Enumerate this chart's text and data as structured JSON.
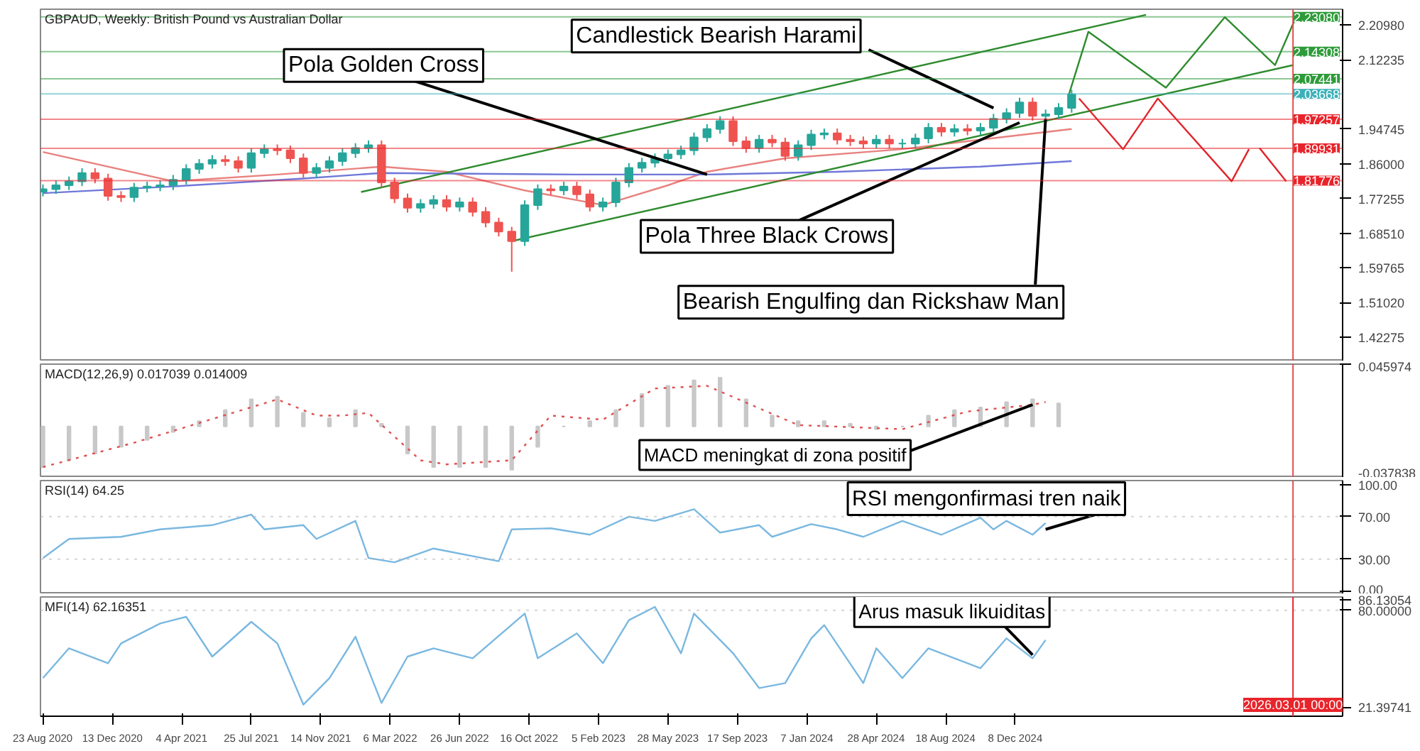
{
  "chart_data": [
    {
      "type": "candlestick",
      "title": "GBPAUD, Weekly:  British Pound vs Australian Dollar",
      "grid": false,
      "tick_labels": "y",
      "xlim": [
        "2020-08-19",
        "2026-05-20"
      ],
      "ylim": [
        1.362,
        2.25
      ],
      "yticks": [
        {
          "value": 2.2098,
          "label": "2.20980"
        },
        {
          "value": 2.12235,
          "label": "2.12235"
        },
        {
          "value": 1.94745,
          "label": "1.94745"
        },
        {
          "value": 1.86,
          "label": "1.86000"
        },
        {
          "value": 1.77255,
          "label": "1.77255"
        },
        {
          "value": 1.6851,
          "label": "1.68510"
        },
        {
          "value": 1.59765,
          "label": "1.59765"
        },
        {
          "value": 1.5102,
          "label": "1.51020"
        },
        {
          "value": 1.42275,
          "label": "1.42275"
        }
      ],
      "x": [
        "2020-08-23",
        "2020-09-13",
        "2020-10-04",
        "2020-10-25",
        "2020-11-15",
        "2020-12-06",
        "2020-12-27",
        "2021-01-17",
        "2021-02-07",
        "2021-02-28",
        "2021-03-21",
        "2021-04-11",
        "2021-05-02",
        "2021-05-23",
        "2021-06-13",
        "2021-07-04",
        "2021-07-25",
        "2021-08-15",
        "2021-09-05",
        "2021-09-26",
        "2021-10-17",
        "2021-11-07",
        "2021-11-28",
        "2021-12-19",
        "2022-01-09",
        "2022-01-30",
        "2022-02-20",
        "2022-03-13",
        "2022-04-03",
        "2022-04-24",
        "2022-05-15",
        "2022-06-05",
        "2022-06-26",
        "2022-07-17",
        "2022-08-07",
        "2022-08-28",
        "2022-09-18",
        "2022-10-09",
        "2022-10-30",
        "2022-11-20",
        "2022-12-11",
        "2023-01-01",
        "2023-01-22",
        "2023-02-12",
        "2023-03-05",
        "2023-03-26",
        "2023-04-16",
        "2023-05-07",
        "2023-05-28",
        "2023-06-18",
        "2023-07-09",
        "2023-07-30",
        "2023-08-20",
        "2023-09-10",
        "2023-10-01",
        "2023-10-22",
        "2023-11-12",
        "2023-12-03",
        "2023-12-24",
        "2024-01-14",
        "2024-02-04",
        "2024-02-25",
        "2024-03-17",
        "2024-04-07",
        "2024-04-28",
        "2024-05-19",
        "2024-06-09",
        "2024-06-30",
        "2024-07-21",
        "2024-08-11",
        "2024-09-01",
        "2024-09-22",
        "2024-10-13",
        "2024-11-03",
        "2024-11-24",
        "2024-12-15",
        "2025-01-05",
        "2025-01-26",
        "2025-02-16",
        "2025-03-09"
      ],
      "ohlc": [
        [
          1.79,
          1.808,
          1.778,
          1.796
        ],
        [
          1.796,
          1.818,
          1.784,
          1.806
        ],
        [
          1.806,
          1.828,
          1.794,
          1.816
        ],
        [
          1.816,
          1.849,
          1.804,
          1.837
        ],
        [
          1.837,
          1.849,
          1.811,
          1.823
        ],
        [
          1.823,
          1.835,
          1.767,
          1.779
        ],
        [
          1.779,
          1.791,
          1.764,
          1.776
        ],
        [
          1.776,
          1.812,
          1.764,
          1.8
        ],
        [
          1.8,
          1.815,
          1.788,
          1.803
        ],
        [
          1.803,
          1.818,
          1.791,
          1.806
        ],
        [
          1.806,
          1.832,
          1.794,
          1.82
        ],
        [
          1.82,
          1.859,
          1.808,
          1.847
        ],
        [
          1.847,
          1.872,
          1.835,
          1.86
        ],
        [
          1.86,
          1.882,
          1.848,
          1.87
        ],
        [
          1.87,
          1.882,
          1.855,
          1.867
        ],
        [
          1.867,
          1.879,
          1.838,
          1.85
        ],
        [
          1.85,
          1.899,
          1.838,
          1.887
        ],
        [
          1.887,
          1.909,
          1.875,
          1.897
        ],
        [
          1.897,
          1.909,
          1.882,
          1.894
        ],
        [
          1.894,
          1.906,
          1.862,
          1.874
        ],
        [
          1.874,
          1.886,
          1.825,
          1.837
        ],
        [
          1.837,
          1.862,
          1.825,
          1.85
        ],
        [
          1.85,
          1.879,
          1.838,
          1.867
        ],
        [
          1.867,
          1.899,
          1.855,
          1.887
        ],
        [
          1.887,
          1.912,
          1.875,
          1.9
        ],
        [
          1.9,
          1.919,
          1.888,
          1.907
        ],
        [
          1.907,
          1.919,
          1.801,
          1.813
        ],
        [
          1.813,
          1.825,
          1.761,
          1.773
        ],
        [
          1.773,
          1.785,
          1.737,
          1.749
        ],
        [
          1.749,
          1.771,
          1.737,
          1.759
        ],
        [
          1.759,
          1.781,
          1.747,
          1.769
        ],
        [
          1.769,
          1.781,
          1.74,
          1.752
        ],
        [
          1.752,
          1.775,
          1.74,
          1.763
        ],
        [
          1.763,
          1.775,
          1.727,
          1.739
        ],
        [
          1.739,
          1.751,
          1.7,
          1.712
        ],
        [
          1.712,
          1.724,
          1.677,
          1.689
        ],
        [
          1.689,
          1.701,
          1.588,
          1.665
        ],
        [
          1.665,
          1.768,
          1.653,
          1.756
        ],
        [
          1.756,
          1.808,
          1.744,
          1.796
        ],
        [
          1.796,
          1.808,
          1.781,
          1.793
        ],
        [
          1.793,
          1.815,
          1.781,
          1.803
        ],
        [
          1.803,
          1.815,
          1.771,
          1.783
        ],
        [
          1.783,
          1.795,
          1.74,
          1.752
        ],
        [
          1.752,
          1.775,
          1.74,
          1.763
        ],
        [
          1.763,
          1.825,
          1.751,
          1.813
        ],
        [
          1.813,
          1.862,
          1.801,
          1.85
        ],
        [
          1.85,
          1.875,
          1.838,
          1.863
        ],
        [
          1.863,
          1.886,
          1.851,
          1.874
        ],
        [
          1.874,
          1.896,
          1.862,
          1.884
        ],
        [
          1.884,
          1.906,
          1.872,
          1.894
        ],
        [
          1.894,
          1.939,
          1.882,
          1.927
        ],
        [
          1.927,
          1.96,
          1.915,
          1.948
        ],
        [
          1.948,
          1.98,
          1.936,
          1.968
        ],
        [
          1.968,
          1.98,
          1.905,
          1.917
        ],
        [
          1.917,
          1.929,
          1.888,
          1.9
        ],
        [
          1.9,
          1.933,
          1.888,
          1.921
        ],
        [
          1.921,
          1.933,
          1.902,
          1.914
        ],
        [
          1.914,
          1.926,
          1.868,
          1.88
        ],
        [
          1.88,
          1.919,
          1.868,
          1.907
        ],
        [
          1.907,
          1.946,
          1.895,
          1.934
        ],
        [
          1.934,
          1.949,
          1.922,
          1.937
        ],
        [
          1.937,
          1.949,
          1.909,
          1.921
        ],
        [
          1.921,
          1.933,
          1.905,
          1.917
        ],
        [
          1.917,
          1.929,
          1.899,
          1.911
        ],
        [
          1.911,
          1.933,
          1.899,
          1.921
        ],
        [
          1.921,
          1.933,
          1.899,
          1.911
        ],
        [
          1.911,
          1.923,
          1.899,
          1.911
        ],
        [
          1.911,
          1.936,
          1.899,
          1.924
        ],
        [
          1.924,
          1.963,
          1.912,
          1.951
        ],
        [
          1.951,
          1.963,
          1.929,
          1.941
        ],
        [
          1.941,
          1.96,
          1.929,
          1.948
        ],
        [
          1.948,
          1.96,
          1.932,
          1.944
        ],
        [
          1.944,
          1.963,
          1.932,
          1.951
        ],
        [
          1.951,
          1.986,
          1.939,
          1.974
        ],
        [
          1.974,
          2.0,
          1.962,
          1.988
        ],
        [
          1.988,
          2.027,
          1.976,
          2.015
        ],
        [
          2.015,
          2.027,
          1.969,
          1.981
        ],
        [
          1.981,
          1.997,
          1.969,
          1.985
        ],
        [
          1.985,
          2.013,
          1.973,
          2.001
        ],
        [
          2.001,
          2.047,
          1.989,
          2.035
        ]
      ],
      "series": [
        {
          "type": "line",
          "color": "#e8827f",
          "x": [
            "2020-08-23",
            "2021-03-21",
            "2021-09-05",
            "2022-02-20",
            "2022-06-05",
            "2022-10-09",
            "2023-02-12",
            "2023-05-28",
            "2023-07-30",
            "2023-12-03",
            "2024-06-09",
            "2024-10-13",
            "2025-03-09"
          ],
          "values": [
            1.89,
            1.816,
            1.833,
            1.853,
            1.84,
            1.793,
            1.756,
            1.806,
            1.84,
            1.874,
            1.897,
            1.921,
            1.948
          ]
        },
        {
          "type": "line",
          "color": "#6f78d8",
          "x": [
            "2020-08-23",
            "2021-03-21",
            "2021-10-17",
            "2022-02-20",
            "2023-01-01",
            "2023-07-30",
            "2024-02-25",
            "2024-10-13",
            "2025-03-09"
          ],
          "values": [
            1.786,
            1.803,
            1.823,
            1.837,
            1.833,
            1.833,
            1.84,
            1.853,
            1.867
          ]
        },
        {
          "type": "line",
          "color": "#2e8b2e",
          "x": [
            "2022-09-18",
            "2026-03-01"
          ],
          "values": [
            1.665,
            2.109
          ]
        },
        {
          "type": "line",
          "color": "#2e8b2e",
          "x": [
            "2022-01-18",
            "2025-07-07"
          ],
          "values": [
            1.789,
            2.236
          ]
        },
        {
          "type": "line",
          "color": "#2e8b2e",
          "x": [
            "2025-03-04",
            "2025-04-05",
            "2025-08-08",
            "2025-11-11",
            "2026-01-31",
            "2026-03-05"
          ],
          "values": [
            2.032,
            2.193,
            2.052,
            2.23,
            2.109,
            2.227
          ]
        },
        {
          "type": "line",
          "color": "#e0242b",
          "x": [
            "2025-03-21",
            "2025-05-31",
            "2025-07-26",
            "2025-11-22",
            "2025-12-20"
          ],
          "values": [
            2.025,
            1.897,
            2.025,
            1.816,
            1.897
          ]
        },
        {
          "type": "line",
          "color": "#e0242b",
          "x": [
            "2026-01-06",
            "2026-02-18"
          ],
          "values": [
            1.9,
            1.816
          ]
        }
      ],
      "ref_lines": [
        {
          "axis": "y",
          "value": 2.2308,
          "label": "2.23080",
          "color": "#2e9b3a"
        },
        {
          "axis": "y",
          "value": 2.14308,
          "label": "2.14308",
          "color": "#2e9b3a"
        },
        {
          "axis": "y",
          "value": 2.07441,
          "label": "2.07441",
          "color": "#2e9b3a"
        },
        {
          "axis": "y",
          "value": 2.03668,
          "label": "2.03668",
          "color": "#3cb0b8"
        },
        {
          "axis": "y",
          "value": 1.97257,
          "label": "1.97257",
          "color": "#e8242b"
        },
        {
          "axis": "y",
          "value": 1.89931,
          "label": "1.89931",
          "color": "#e8242b"
        },
        {
          "axis": "y",
          "value": 1.81776,
          "label": "1.81776",
          "color": "#e8242b"
        },
        {
          "axis": "x",
          "value": "2026-03-01",
          "color": "#e05050"
        }
      ],
      "annotations": [
        {
          "text": "Candlestick Bearish Harami",
          "x": "2024-11-03",
          "y": 2.001
        },
        {
          "text": "Pola Golden Cross",
          "x": "2023-07-30",
          "y": 1.833
        },
        {
          "text": "Pola Three Black Crows",
          "x": "2024-12-15",
          "y": 1.964
        },
        {
          "text": "Bearish Engulfing dan Rickshaw Man",
          "x": "2025-01-26",
          "y": 1.974
        }
      ]
    },
    {
      "type": "bar",
      "title": "MACD(12,26,9) 0.017039 0.014009",
      "grid": false,
      "tick_labels": "y",
      "xlim": [
        "2020-08-19",
        "2026-05-20"
      ],
      "ylim": [
        -0.037838,
        0.045974
      ],
      "yticks": [
        {
          "value": 0.045974,
          "label": "0.045974"
        },
        {
          "value": -0.037838,
          "label": "-0.037838"
        }
      ],
      "series": [
        {
          "type": "bar",
          "color": "#c8c8c8",
          "x": [
            "2020-08-23",
            "2020-10-04",
            "2020-11-15",
            "2020-12-27",
            "2021-02-07",
            "2021-03-21",
            "2021-05-02",
            "2021-06-13",
            "2021-07-25",
            "2021-09-05",
            "2021-10-17",
            "2021-11-28",
            "2022-01-09",
            "2022-02-20",
            "2022-04-03",
            "2022-05-15",
            "2022-06-26",
            "2022-08-07",
            "2022-09-18",
            "2022-10-30",
            "2022-12-11",
            "2023-01-22",
            "2023-03-05",
            "2023-04-16",
            "2023-05-28",
            "2023-07-09",
            "2023-08-20",
            "2023-10-01",
            "2023-11-12",
            "2023-12-24",
            "2024-02-04",
            "2024-03-17",
            "2024-04-28",
            "2024-06-09",
            "2024-07-21",
            "2024-09-01",
            "2024-10-13",
            "2024-11-24",
            "2025-01-05",
            "2025-02-16"
          ],
          "values": [
            -0.03,
            -0.025,
            -0.02,
            -0.015,
            -0.01,
            -0.004,
            0.004,
            0.012,
            0.02,
            0.022,
            0.01,
            0.006,
            0.012,
            0.002,
            -0.02,
            -0.03,
            -0.03,
            -0.03,
            -0.032,
            -0.015,
            0.0,
            0.004,
            0.012,
            0.024,
            0.03,
            0.034,
            0.036,
            0.02,
            0.008,
            0.004,
            0.004,
            0.002,
            -0.002,
            0.0,
            0.008,
            0.012,
            0.014,
            0.018,
            0.02,
            0.017
          ]
        },
        {
          "type": "line",
          "color": "#e05050",
          "line_style": "dotted",
          "x": [
            "2020-08-23",
            "2021-01-17",
            "2021-09-05",
            "2021-11-07",
            "2021-12-19",
            "2022-01-30",
            "2022-04-24",
            "2022-06-05",
            "2022-09-18",
            "2022-11-20",
            "2023-02-12",
            "2023-05-07",
            "2023-07-30",
            "2023-12-24",
            "2024-06-09",
            "2024-09-22",
            "2025-01-05",
            "2025-01-26"
          ],
          "values": [
            -0.03,
            -0.012,
            0.02,
            0.008,
            0.008,
            0.01,
            -0.025,
            -0.028,
            -0.025,
            0.008,
            0.005,
            0.028,
            0.03,
            0.001,
            -0.002,
            0.011,
            0.016,
            0.018
          ]
        }
      ],
      "ref_lines": [
        {
          "axis": "x",
          "value": "2026-03-01",
          "color": "#e05050"
        }
      ],
      "annotations": [
        {
          "text": "MACD meningkat di zona positif",
          "x": "2025-01-05",
          "y": 0.016
        }
      ]
    },
    {
      "type": "line",
      "title": "RSI(14) 64.25",
      "grid": false,
      "tick_labels": "y",
      "xlim": [
        "2020-08-19",
        "2026-05-20"
      ],
      "ylim": [
        -3,
        104
      ],
      "yticks": [
        {
          "value": 100,
          "label": "100.00"
        },
        {
          "value": 70,
          "label": "70.00"
        },
        {
          "value": 30,
          "label": "30.00"
        },
        {
          "value": 0,
          "label": "0.00"
        }
      ],
      "series": [
        {
          "color": "#7ab8e0",
          "x": [
            "2020-08-23",
            "2020-10-04",
            "2020-12-27",
            "2021-02-28",
            "2021-05-23",
            "2021-07-25",
            "2021-08-15",
            "2021-10-17",
            "2021-11-07",
            "2022-01-09",
            "2022-01-30",
            "2022-03-13",
            "2022-05-15",
            "2022-08-28",
            "2022-09-18",
            "2022-11-20",
            "2023-01-22",
            "2023-03-26",
            "2023-05-07",
            "2023-07-09",
            "2023-08-20",
            "2023-10-22",
            "2023-11-12",
            "2024-01-14",
            "2024-02-25",
            "2024-04-07",
            "2024-06-09",
            "2024-08-11",
            "2024-10-13",
            "2024-11-03",
            "2024-11-24",
            "2025-01-05",
            "2025-01-26"
          ],
          "values": [
            31,
            49,
            51,
            58,
            62,
            72,
            58,
            62,
            49,
            66,
            31,
            27,
            40,
            28,
            58,
            59,
            53,
            70,
            66,
            77,
            55,
            62,
            51,
            63,
            58,
            51,
            66,
            53,
            69,
            58,
            66,
            53,
            64
          ]
        }
      ],
      "ref_lines": [
        {
          "axis": "y",
          "value": 70,
          "color": "#b0b0b0",
          "line_style": "dotted"
        },
        {
          "axis": "y",
          "value": 30,
          "color": "#b0b0b0",
          "line_style": "dotted"
        },
        {
          "axis": "x",
          "value": "2026-03-01",
          "color": "#e05050"
        }
      ],
      "annotations": [
        {
          "text": "RSI mengonfirmasi tren naik",
          "x": "2025-01-26",
          "y": 58
        }
      ]
    },
    {
      "type": "line",
      "title": "MFI(14) 62.16351",
      "grid": false,
      "xlim": [
        "2020-08-19",
        "2026-05-20"
      ],
      "ylim": [
        16,
        88
      ],
      "xticks": [
        {
          "value": "2020-08-23",
          "label": "23 Aug 2020"
        },
        {
          "value": "2020-12-13",
          "label": "13 Dec 2020"
        },
        {
          "value": "2021-04-04",
          "label": "4 Apr 2021"
        },
        {
          "value": "2021-07-25",
          "label": "25 Jul 2021"
        },
        {
          "value": "2021-11-14",
          "label": "14 Nov 2021"
        },
        {
          "value": "2022-03-06",
          "label": "6 Mar 2022"
        },
        {
          "value": "2022-06-26",
          "label": "26 Jun 2022"
        },
        {
          "value": "2022-10-16",
          "label": "16 Oct 2022"
        },
        {
          "value": "2023-02-05",
          "label": "5 Feb 2023"
        },
        {
          "value": "2023-05-28",
          "label": "28 May 2023"
        },
        {
          "value": "2023-09-17",
          "label": "17 Sep 2023"
        },
        {
          "value": "2024-01-07",
          "label": "7 Jan 2024"
        },
        {
          "value": "2024-04-28",
          "label": "28 Apr 2024"
        },
        {
          "value": "2024-08-18",
          "label": "18 Aug 2024"
        },
        {
          "value": "2024-12-08",
          "label": "8 Dec 2024"
        }
      ],
      "yticks": [
        {
          "value": 86.13054,
          "label": "86.13054"
        },
        {
          "value": 80,
          "label": "80.00000"
        },
        {
          "value": 21.39741,
          "label": "21.39741"
        }
      ],
      "series": [
        {
          "color": "#7ab8e0",
          "x": [
            "2020-08-23",
            "2020-10-04",
            "2020-10-25",
            "2020-12-06",
            "2020-12-27",
            "2021-02-28",
            "2021-04-11",
            "2021-05-23",
            "2021-07-25",
            "2021-09-05",
            "2021-10-17",
            "2021-11-28",
            "2022-01-09",
            "2022-02-20",
            "2022-04-03",
            "2022-05-15",
            "2022-07-17",
            "2022-10-09",
            "2022-10-30",
            "2023-01-01",
            "2023-02-12",
            "2023-03-26",
            "2023-05-07",
            "2023-06-18",
            "2023-07-09",
            "2023-09-10",
            "2023-10-22",
            "2023-12-03",
            "2024-01-14",
            "2024-02-04",
            "2024-04-07",
            "2024-04-28",
            "2024-06-09",
            "2024-07-21",
            "2024-09-01",
            "2024-10-13",
            "2024-11-03",
            "2024-11-24",
            "2025-01-05",
            "2025-01-26"
          ],
          "values": [
            39,
            57,
            54,
            48,
            60,
            72,
            76,
            52,
            73,
            60,
            23,
            39,
            64,
            24,
            52,
            57,
            51,
            78,
            51,
            66,
            48,
            74,
            82,
            54,
            78,
            54,
            33,
            36,
            63,
            71,
            36,
            57,
            39,
            57,
            51,
            45,
            54,
            63,
            51,
            62
          ]
        }
      ],
      "ref_lines": [
        {
          "axis": "y",
          "value": 80,
          "color": "#b0b0b0",
          "line_style": "dotted"
        },
        {
          "axis": "x",
          "value": "2026-03-01",
          "label": "2026.03.01 00:00",
          "color": "#e8242b"
        }
      ],
      "annotations": [
        {
          "text": "Arus masuk likuiditas",
          "x": "2025-01-05",
          "y": 53
        }
      ]
    }
  ]
}
